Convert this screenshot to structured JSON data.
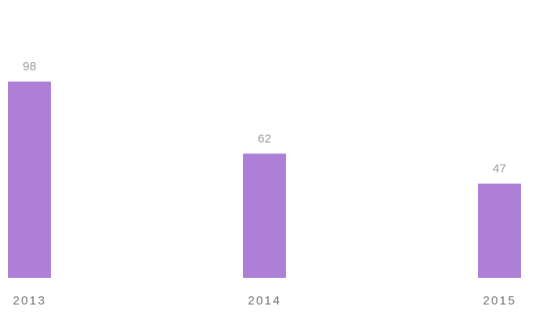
{
  "chart_data": {
    "type": "bar",
    "categories": [
      "2013",
      "2014",
      "2015"
    ],
    "values": [
      98,
      62,
      47
    ],
    "title": "",
    "xlabel": "",
    "ylabel": "",
    "ylim": [
      0,
      98
    ],
    "grid": false,
    "legend": "none",
    "data_labels": true,
    "bar_color": "#ad7fd6"
  }
}
